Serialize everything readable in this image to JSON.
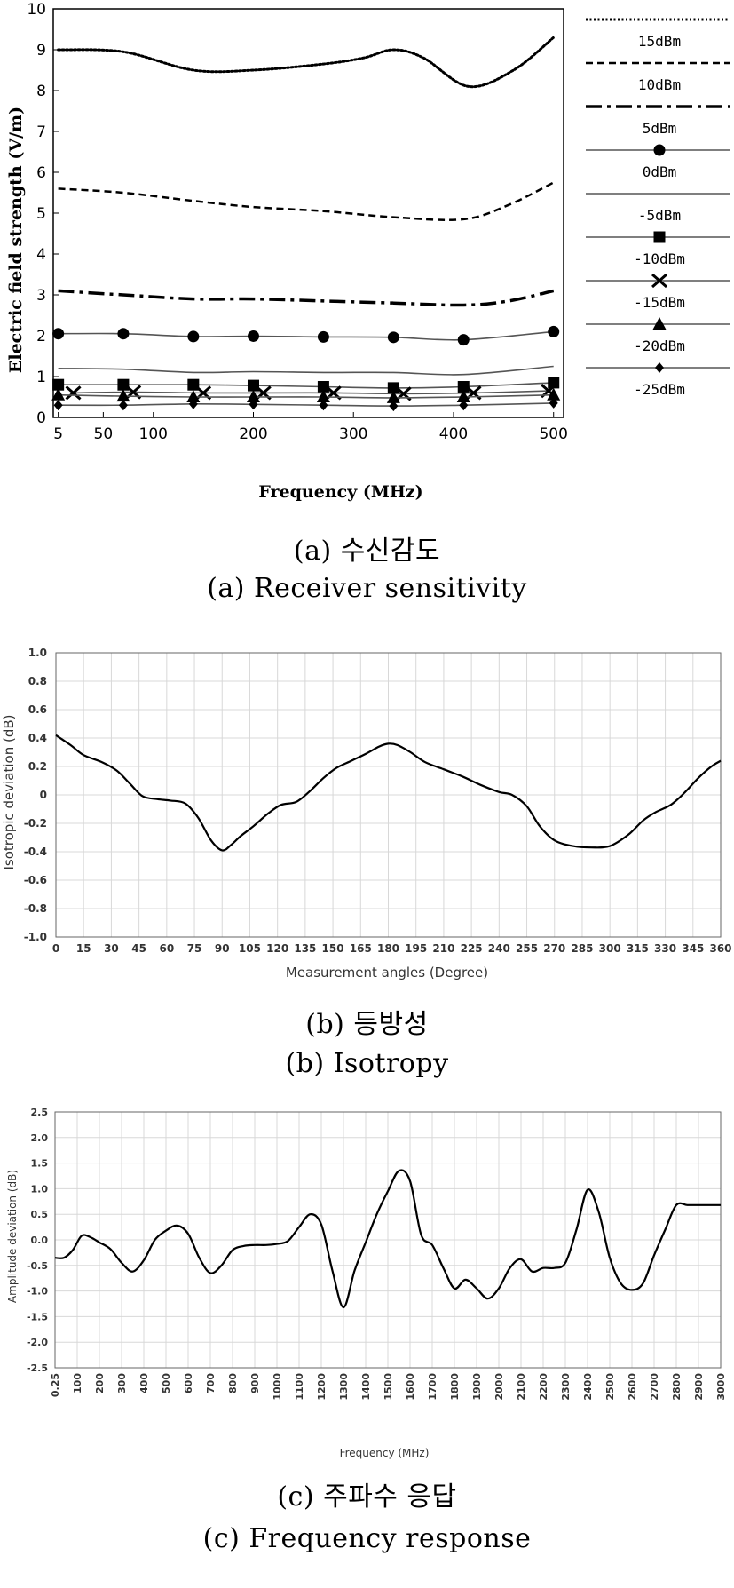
{
  "captions": {
    "a_ko": "(a) 수신감도",
    "a_en": "(a) Receiver sensitivity",
    "b_ko": "(b) 등방성",
    "b_en": "(b) Isotropy",
    "c_ko": "(c) 주파수 응답",
    "c_en": "(c) Frequency response"
  },
  "chart_data": [
    {
      "id": "a",
      "type": "line",
      "title": "",
      "xlabel": "Frequency (MHz)",
      "ylabel": "Electric field strength (V/m)",
      "xlim": [
        0,
        510
      ],
      "ylim": [
        0,
        10
      ],
      "yticks": [
        0,
        1,
        2,
        3,
        4,
        5,
        6,
        7,
        8,
        9,
        10
      ],
      "xticks": [
        {
          "label": "5",
          "value": 5
        },
        {
          "label": "50",
          "value": 50
        },
        {
          "label": "100",
          "value": 100
        },
        {
          "label": "200",
          "value": 200
        },
        {
          "label": "300",
          "value": 300
        },
        {
          "label": "400",
          "value": 400
        },
        {
          "label": "500",
          "value": 500
        }
      ],
      "grid": false,
      "legend": "right",
      "series": [
        {
          "name": "15dBm",
          "style": "dotted",
          "marker": "none",
          "x": [
            5,
            70,
            140,
            200,
            270,
            310,
            340,
            370,
            415,
            460,
            500
          ],
          "y": [
            9.0,
            8.95,
            8.5,
            8.5,
            8.65,
            8.8,
            9.0,
            8.8,
            8.1,
            8.5,
            9.3
          ]
        },
        {
          "name": "10dBm",
          "style": "dashed",
          "marker": "none",
          "x": [
            5,
            70,
            140,
            200,
            270,
            340,
            410,
            455,
            500
          ],
          "y": [
            5.6,
            5.5,
            5.3,
            5.15,
            5.05,
            4.9,
            4.85,
            5.2,
            5.75
          ]
        },
        {
          "name": "5dBm",
          "style": "dashdot",
          "marker": "none",
          "x": [
            5,
            70,
            140,
            200,
            270,
            340,
            410,
            455,
            500
          ],
          "y": [
            3.1,
            3.0,
            2.9,
            2.9,
            2.85,
            2.8,
            2.75,
            2.85,
            3.1
          ]
        },
        {
          "name": "0dBm",
          "style": "solid",
          "marker": "circle",
          "x": [
            5,
            70,
            140,
            200,
            270,
            340,
            410,
            500
          ],
          "y": [
            2.05,
            2.05,
            1.98,
            1.99,
            1.97,
            1.96,
            1.9,
            2.1
          ]
        },
        {
          "name": "-5dBm",
          "style": "solid",
          "marker": "none",
          "x": [
            5,
            70,
            140,
            200,
            270,
            340,
            410,
            500
          ],
          "y": [
            1.2,
            1.18,
            1.1,
            1.12,
            1.1,
            1.1,
            1.05,
            1.25
          ]
        },
        {
          "name": "-10dBm",
          "style": "solid",
          "marker": "square",
          "x": [
            5,
            70,
            140,
            200,
            270,
            340,
            410,
            500
          ],
          "y": [
            0.8,
            0.8,
            0.8,
            0.78,
            0.75,
            0.72,
            0.75,
            0.85
          ]
        },
        {
          "name": "-15dBm",
          "style": "solid",
          "marker": "x",
          "x": [
            20,
            80,
            150,
            210,
            280,
            350,
            420,
            495
          ],
          "y": [
            0.6,
            0.62,
            0.6,
            0.6,
            0.6,
            0.58,
            0.6,
            0.65
          ]
        },
        {
          "name": "-20dBm",
          "style": "solid",
          "marker": "triangle",
          "x": [
            5,
            70,
            140,
            200,
            270,
            340,
            410,
            500
          ],
          "y": [
            0.55,
            0.52,
            0.5,
            0.5,
            0.5,
            0.48,
            0.5,
            0.55
          ]
        },
        {
          "name": "-25dBm",
          "style": "solid",
          "marker": "diamond",
          "x": [
            5,
            70,
            140,
            200,
            270,
            340,
            410,
            500
          ],
          "y": [
            0.3,
            0.3,
            0.33,
            0.32,
            0.3,
            0.28,
            0.3,
            0.35
          ]
        }
      ]
    },
    {
      "id": "b",
      "type": "line",
      "title": "",
      "xlabel": "Measurement angles (Degree)",
      "ylabel": "Isotropic deviation (dB)",
      "xlim": [
        0,
        360
      ],
      "ylim": [
        -1.0,
        1.0
      ],
      "xticks": [
        0,
        15,
        30,
        45,
        60,
        75,
        90,
        105,
        120,
        135,
        150,
        165,
        180,
        195,
        210,
        225,
        240,
        255,
        270,
        285,
        300,
        315,
        330,
        345,
        360
      ],
      "yticks": [
        "-1.0",
        "-0.8",
        "-0.6",
        "-0.4",
        "-0.2",
        "0",
        "0.2",
        "0.4",
        "0.6",
        "0.8",
        "1.0"
      ],
      "grid": true,
      "series": [
        {
          "x": [
            0,
            8,
            15,
            25,
            33,
            40,
            47,
            55,
            62,
            70,
            77,
            84,
            90,
            95,
            100,
            107,
            115,
            122,
            130,
            137,
            145,
            152,
            160,
            168,
            175,
            180,
            185,
            192,
            200,
            210,
            220,
            230,
            240,
            247,
            255,
            262,
            270,
            280,
            290,
            300,
            310,
            318,
            325,
            333,
            340,
            348,
            355,
            360
          ],
          "y": [
            0.42,
            0.35,
            0.28,
            0.23,
            0.17,
            0.08,
            -0.01,
            -0.03,
            -0.04,
            -0.06,
            -0.16,
            -0.32,
            -0.39,
            -0.35,
            -0.29,
            -0.22,
            -0.13,
            -0.07,
            -0.05,
            0.02,
            0.12,
            0.19,
            0.24,
            0.29,
            0.34,
            0.36,
            0.35,
            0.3,
            0.23,
            0.18,
            0.13,
            0.07,
            0.02,
            0.0,
            -0.08,
            -0.22,
            -0.32,
            -0.36,
            -0.37,
            -0.36,
            -0.28,
            -0.18,
            -0.12,
            -0.07,
            0.01,
            0.12,
            0.2,
            0.24
          ]
        }
      ]
    },
    {
      "id": "c",
      "type": "line",
      "title": "",
      "xlabel": "Frequency (MHz)",
      "ylabel": "Amplitude deviation (dB)",
      "ylim": [
        -2.5,
        2.5
      ],
      "xticks": [
        "0.25",
        "100",
        "200",
        "300",
        "400",
        "500",
        "600",
        "700",
        "800",
        "900",
        "1000",
        "1100",
        "1200",
        "1300",
        "1400",
        "1500",
        "1600",
        "1700",
        "1800",
        "1900",
        "2000",
        "2100",
        "2200",
        "2300",
        "2400",
        "2500",
        "2600",
        "2700",
        "2800",
        "2900",
        "3000"
      ],
      "yticks": [
        "-2.5",
        "-2.0",
        "-1.5",
        "-1.0",
        "-0.5",
        "0.0",
        "0.5",
        "1.0",
        "1.5",
        "2.0",
        "2.5"
      ],
      "grid": true,
      "series": [
        {
          "x": [
            0,
            0.4,
            0.8,
            1.2,
            1.6,
            2.0,
            2.5,
            3.0,
            3.5,
            4.0,
            4.5,
            5.0,
            5.5,
            6.0,
            6.5,
            7.0,
            7.5,
            8.0,
            8.5,
            9.0,
            9.5,
            10.0,
            10.5,
            11.0,
            11.5,
            12.0,
            12.5,
            13.0,
            13.5,
            14.0,
            14.5,
            15.0,
            15.5,
            16.0,
            16.5,
            17.0,
            17.5,
            18.0,
            18.5,
            19.0,
            19.5,
            20.0,
            20.5,
            21.0,
            21.5,
            22.0,
            22.5,
            23.0,
            23.5,
            24.0,
            24.5,
            25.0,
            25.5,
            26.0,
            26.5,
            27.0,
            27.5,
            28.0,
            28.5,
            29.0,
            29.5,
            30.0
          ],
          "y": [
            -0.35,
            -0.35,
            -0.2,
            0.08,
            0.05,
            -0.05,
            -0.18,
            -0.45,
            -0.62,
            -0.4,
            0.0,
            0.18,
            0.28,
            0.12,
            -0.35,
            -0.65,
            -0.5,
            -0.2,
            -0.12,
            -0.1,
            -0.1,
            -0.08,
            -0.02,
            0.25,
            0.5,
            0.3,
            -0.6,
            -1.32,
            -0.6,
            -0.05,
            0.5,
            0.95,
            1.35,
            1.15,
            0.1,
            -0.1,
            -0.55,
            -0.95,
            -0.78,
            -0.95,
            -1.15,
            -0.95,
            -0.55,
            -0.38,
            -0.62,
            -0.55,
            -0.55,
            -0.45,
            0.2,
            0.98,
            0.55,
            -0.35,
            -0.85,
            -0.98,
            -0.85,
            -0.3,
            0.2,
            0.68,
            0.68,
            0.68,
            0.68,
            0.68
          ]
        }
      ]
    }
  ]
}
